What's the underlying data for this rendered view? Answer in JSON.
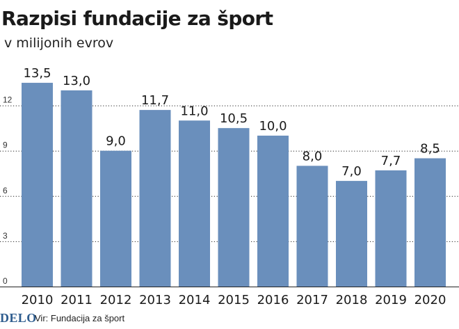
{
  "chart_data": {
    "type": "bar",
    "title": "Razpisi fundacije za šport",
    "subtitle": "v milijonih evrov",
    "categories": [
      "2010",
      "2011",
      "2012",
      "2013",
      "2014",
      "2015",
      "2016",
      "2017",
      "2018",
      "2019",
      "2020"
    ],
    "values": [
      13.5,
      13.0,
      9.0,
      11.7,
      11.0,
      10.5,
      10.0,
      8.0,
      7.0,
      7.7,
      8.5
    ],
    "value_labels": [
      "13,5",
      "13,0",
      "9,0",
      "11,7",
      "11,0",
      "10,5",
      "10,0",
      "8,0",
      "7,0",
      "7,7",
      "8,5"
    ],
    "y_ticks": [
      0,
      3,
      6,
      9,
      12
    ],
    "ylim": [
      0,
      15
    ],
    "grid": true,
    "bar_color": "#6a8fbc",
    "grid_color": "#222222"
  },
  "footer": {
    "logo_text": "DELO",
    "source": "Vir: Fundacija za šport"
  }
}
